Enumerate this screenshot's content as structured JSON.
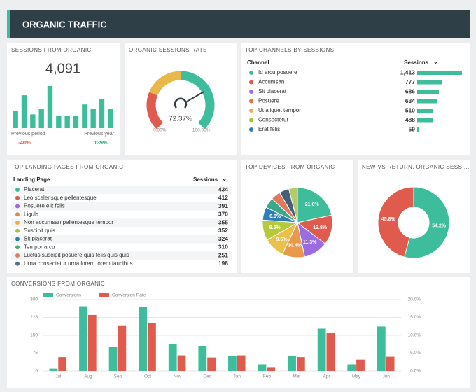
{
  "header": {
    "title": "ORGANIC TRAFFIC"
  },
  "sessions": {
    "title": "SESSIONS FROM ORGANIC",
    "total": "4,091",
    "type": "bar",
    "color": "#3dbd9c",
    "values": [
      23,
      43,
      18,
      25,
      55,
      16,
      16,
      16,
      31,
      25,
      38,
      25
    ],
    "left_label": "Previous period",
    "left_change": "-40%",
    "right_label": "Previous year",
    "right_change": "139%"
  },
  "gauge": {
    "title": "ORGANIC SESSIONS RATE",
    "type": "gauge",
    "value": 72.37,
    "value_label": "72.37%",
    "range": [
      0,
      100
    ],
    "ticks": [
      {
        "value": 0,
        "label": "0.00%"
      },
      {
        "value": 100,
        "label": "100.00%"
      }
    ],
    "bands": [
      {
        "from": 0,
        "to": 25,
        "color": "#e05a4e"
      },
      {
        "from": 25,
        "to": 50,
        "color": "#e8b84a"
      },
      {
        "from": 50,
        "to": 100,
        "color": "#3dbd9c"
      }
    ]
  },
  "channels": {
    "title": "TOP CHANNELS BY SESSIONS",
    "columns": [
      "Channel",
      "Sessions"
    ],
    "bar_color": "#3dbd9c",
    "categories": [
      "Id arcu posuere",
      "Accumsan",
      "Sit placerat",
      "Posuere",
      "Ut aliquet tempor",
      "Consectetur",
      "Erat felis"
    ],
    "colors": [
      "#3dbd9c",
      "#e05a4e",
      "#9b6be0",
      "#e8734a",
      "#e8b04a",
      "#a5c43a",
      "#2f7fb5"
    ],
    "values": [
      1413,
      777,
      686,
      634,
      510,
      488,
      59
    ],
    "value_labels": [
      "1,413",
      "777",
      "686",
      "634",
      "510",
      "488",
      "59"
    ]
  },
  "landing": {
    "title": "TOP LANDING PAGES FROM ORGANIC",
    "columns": [
      "Landing Page",
      "Sessions"
    ],
    "categories": [
      "Placerat",
      "Leo scelerisque pellentesque",
      "Posuere elit felis",
      "Ligula",
      "Non accumsan pellentesque tempor",
      "Suscipit quis",
      "Sit placerat",
      "Tempor arcu",
      "Luctus suscipit posuere quis felis quis quis",
      "Urna consectetur urna lorem lorem faucibus"
    ],
    "colors": [
      "#3dbd9c",
      "#e05a4e",
      "#9b6be0",
      "#e8834a",
      "#e8b04a",
      "#a5c43a",
      "#2f7fb5",
      "#4caf6e",
      "#e07a5a",
      "#5a6e8a"
    ],
    "values": [
      434,
      412,
      391,
      370,
      355,
      352,
      324,
      310,
      251,
      198
    ]
  },
  "devices": {
    "title": "TOP DEVICES FROM ORGANIC",
    "type": "pie",
    "values": [
      21.6,
      13.8,
      11.3,
      10.4,
      9.6,
      9.5,
      6.0,
      4.8,
      4.5,
      4.5,
      4.0
    ],
    "value_labels": [
      "21.6%",
      "13.8%",
      "11.3%",
      "10.4%",
      "9.6%",
      "9.5%",
      "6.0%",
      null,
      null,
      null,
      null
    ],
    "colors": [
      "#3dbd9c",
      "#e05a4e",
      "#9b6be0",
      "#e89a4a",
      "#e8c04a",
      "#b5c93a",
      "#2f7fb5",
      "#3aa88a",
      "#e07a5a",
      "#46607a",
      "#b9c86a"
    ]
  },
  "visitors": {
    "title": "NEW VS RETURN. ORGANIC SESSI...",
    "type": "donut",
    "values": [
      54.2,
      45.8
    ],
    "value_labels": [
      "54.2%",
      "45.8%"
    ],
    "colors": [
      "#3dbd9c",
      "#e05a4e"
    ]
  },
  "conversions": {
    "title": "CONVERSIONS FROM ORGANIC",
    "type": "bar",
    "grid": true,
    "categories": [
      "Jul",
      "Aug",
      "Sep",
      "Oct",
      "Nov",
      "Dec",
      "Jan",
      "Feb",
      "Mar",
      "Apr",
      "May",
      "Jun"
    ],
    "series": [
      {
        "name": "Conversions",
        "color": "#3dbd9c",
        "values": [
          10,
          272,
          100,
          270,
          112,
          105,
          65,
          28,
          65,
          178,
          28,
          187
        ]
      },
      {
        "name": "Conversion Rate",
        "color": "#e05a4e",
        "axis": "y2",
        "values": [
          3.9,
          15.7,
          12.6,
          13.4,
          4.4,
          3.8,
          4.4,
          0.9,
          3.9,
          10.6,
          3.2,
          4.0
        ]
      }
    ],
    "ylim": [
      0,
      300
    ],
    "yticks": [
      0,
      75,
      150,
      225,
      300
    ],
    "y2lim": [
      0,
      20
    ],
    "y2ticks": [
      {
        "value": 0,
        "label": "0.0%"
      },
      {
        "value": 5,
        "label": "5.0%"
      },
      {
        "value": 10,
        "label": "10.0%"
      },
      {
        "value": 15,
        "label": "15.0%"
      },
      {
        "value": 20,
        "label": "20.0%"
      }
    ]
  }
}
